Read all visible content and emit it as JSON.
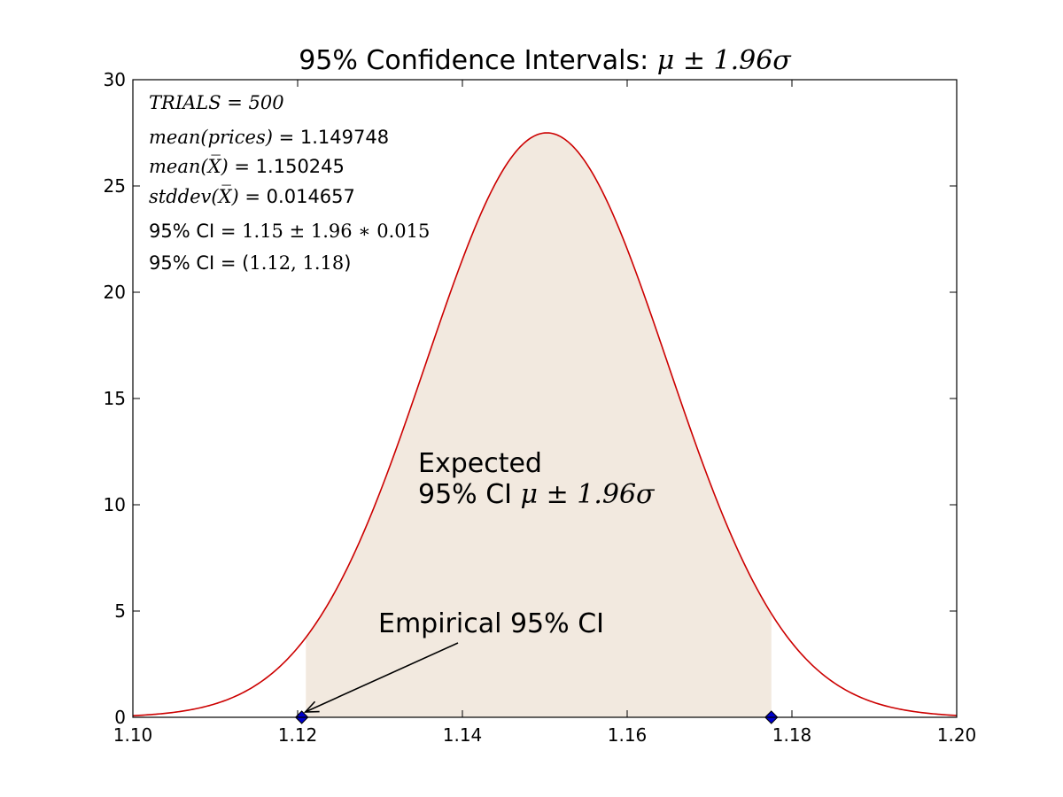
{
  "chart_data": {
    "type": "line",
    "title_text": "95% Confidence Intervals: ",
    "title_math": "μ ± 1.96σ",
    "xlabel": "",
    "ylabel": "",
    "xlim": [
      1.1,
      1.2
    ],
    "ylim": [
      0,
      30
    ],
    "x_ticks": [
      "1.10",
      "1.12",
      "1.14",
      "1.16",
      "1.18",
      "1.20"
    ],
    "y_ticks": [
      "0",
      "5",
      "10",
      "15",
      "20",
      "25",
      "30"
    ],
    "distribution": {
      "kind": "normal-pdf",
      "mean": 1.150245,
      "stddev": 0.014657,
      "peak_value": 27.5,
      "x_range": [
        1.1,
        1.2
      ],
      "line_color": "#cc0000"
    },
    "shaded_interval": {
      "x_start": 1.121,
      "x_end": 1.1775,
      "fill_color": "#f2e9df"
    },
    "empirical_ci_markers": {
      "x": [
        1.1205,
        1.1775
      ],
      "y": [
        0,
        0
      ],
      "color": "#0000cc"
    },
    "info_lines": [
      {
        "math": "TRIALS = 500",
        "text": ""
      },
      {
        "math": "mean(prices)",
        "text": " = 1.149748"
      },
      {
        "math": "mean(X̅)",
        "text": " = 1.150245"
      },
      {
        "math": "stddev(X̅)",
        "text": " = 0.014657"
      },
      {
        "prefix": "95% CI = ",
        "math": "1.15 ± 1.96 ∗ 0.015"
      },
      {
        "prefix": "95% CI = (",
        "math": "1.12, 1.18",
        "suffix": ")"
      }
    ],
    "annotations": {
      "expected_line1": "Expected",
      "expected_line2_text": "95% CI ",
      "expected_line2_math": "μ ± 1.96σ",
      "empirical_label": "Empirical 95% CI",
      "arrow_target": {
        "x": 1.1205,
        "y": 0
      }
    }
  }
}
